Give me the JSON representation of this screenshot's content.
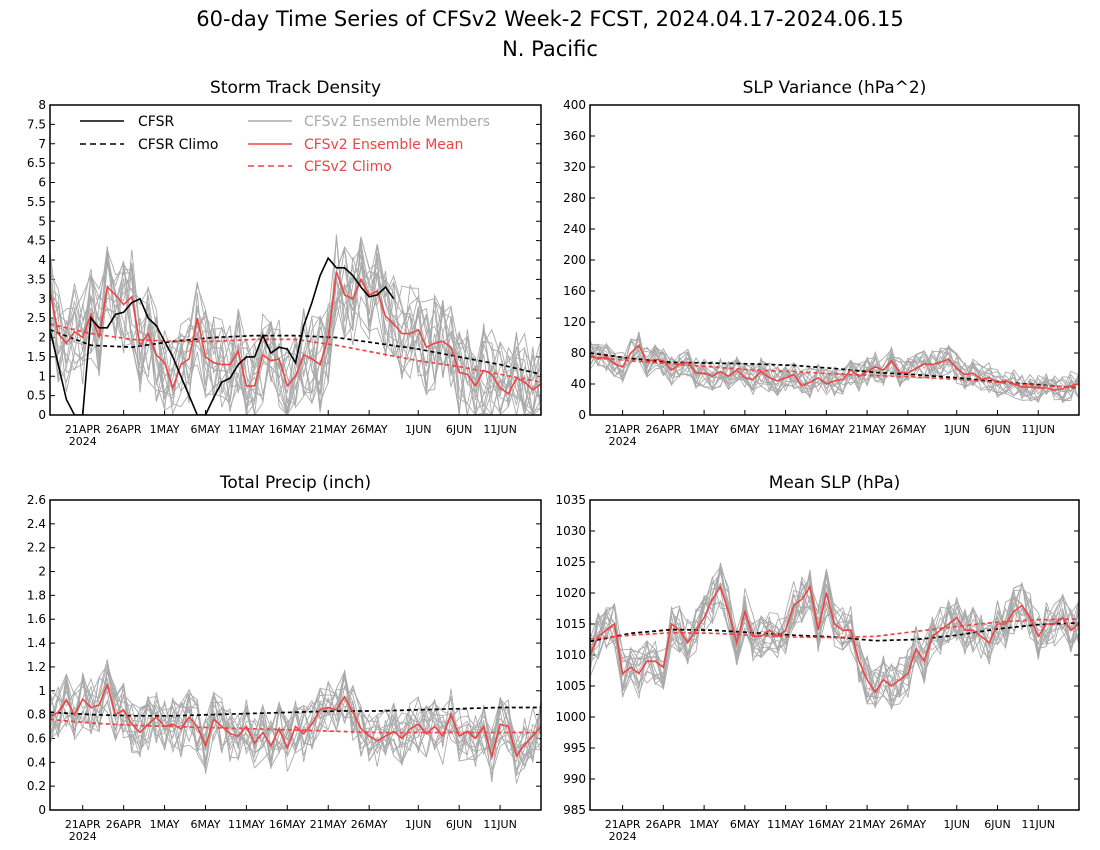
{
  "figure": {
    "title_line1": "60-day Time Series of CFSv2 Week-2 FCST, 2024.04.17-2024.06.15",
    "title_line2": "N. Pacific"
  },
  "colors": {
    "cfsr": "#000000",
    "cfsv2_mean": "#ee4444",
    "cfsv2_members": "#aaaaaa",
    "frame": "#000000"
  },
  "legend": {
    "cfsr": "CFSR",
    "cfsr_climo": "CFSR Climo",
    "members": "CFSv2 Ensemble Members",
    "mean": "CFSv2 Ensemble Mean",
    "cfsv2_climo": "CFSv2 Climo"
  },
  "x_axis": {
    "ticks": [
      {
        "day": 4,
        "label": "21APR",
        "sub": "2024"
      },
      {
        "day": 9,
        "label": "26APR"
      },
      {
        "day": 14,
        "label": "1MAY"
      },
      {
        "day": 19,
        "label": "6MAY"
      },
      {
        "day": 24,
        "label": "11MAY"
      },
      {
        "day": 29,
        "label": "16MAY"
      },
      {
        "day": 34,
        "label": "21MAY"
      },
      {
        "day": 39,
        "label": "26MAY"
      },
      {
        "day": 45,
        "label": "1JUN"
      },
      {
        "day": 50,
        "label": "6JUN"
      },
      {
        "day": 55,
        "label": "11JUN"
      }
    ]
  },
  "chart_data": [
    {
      "id": "storm",
      "type": "line",
      "title": "Storm Track Density",
      "ylim": [
        0,
        8
      ],
      "yticks": [
        "0",
        "0.5",
        "1",
        "1.5",
        "2",
        "2.5",
        "3",
        "3.5",
        "4",
        "4.5",
        "5",
        "5.5",
        "6",
        "6.5",
        "7",
        "7.5",
        "8"
      ],
      "member_count": 16,
      "member_spread": 0.9,
      "series": [
        {
          "name": "CFSR",
          "style": "solid",
          "color": "#000000",
          "x": [
            0,
            1,
            2,
            3,
            4,
            5,
            6,
            7,
            8,
            9,
            10,
            11,
            12,
            13,
            14,
            15,
            16,
            17,
            18,
            19,
            20,
            21,
            22,
            23,
            24,
            25,
            26,
            27,
            28,
            29,
            30,
            31,
            32,
            33,
            34,
            35,
            36,
            37,
            38,
            39,
            40,
            41,
            42
          ],
          "y": [
            2.2,
            1.3,
            0.4,
            0,
            0,
            2.5,
            2.25,
            2.25,
            2.6,
            2.65,
            2.9,
            3.0,
            2.5,
            2.3,
            1.9,
            1.5,
            1.0,
            0.5,
            0,
            0,
            0.45,
            0.85,
            0.95,
            1.3,
            1.5,
            1.5,
            2.05,
            1.6,
            1.75,
            1.7,
            1.35,
            2.3,
            2.9,
            3.6,
            4.05,
            3.8,
            3.8,
            3.6,
            3.3,
            3.05,
            3.1,
            3.3,
            3.0
          ]
        },
        {
          "name": "CFSR Climo",
          "style": "dashed",
          "color": "#000000",
          "x": [
            0,
            5,
            10,
            15,
            20,
            25,
            30,
            35,
            40,
            45,
            50,
            55,
            60
          ],
          "y": [
            2.2,
            1.8,
            1.75,
            1.9,
            2.0,
            2.05,
            2.05,
            2.0,
            1.85,
            1.7,
            1.5,
            1.3,
            1.05
          ]
        },
        {
          "name": "CFSv2 Ensemble Mean",
          "style": "solid",
          "color": "#ee4444",
          "x": [
            0,
            1,
            2,
            3,
            4,
            5,
            6,
            7,
            8,
            9,
            10,
            11,
            12,
            13,
            14,
            15,
            16,
            17,
            18,
            19,
            20,
            21,
            22,
            23,
            24,
            25,
            26,
            27,
            28,
            29,
            30,
            31,
            32,
            33,
            34,
            35,
            36,
            37,
            38,
            39,
            40,
            41,
            42,
            43,
            44,
            45,
            46,
            47,
            48,
            49,
            50,
            51,
            52,
            53,
            54,
            55,
            56,
            57,
            58,
            59,
            60
          ],
          "y": [
            3.2,
            2.1,
            1.85,
            2.15,
            2.0,
            2.6,
            2.0,
            3.3,
            3.1,
            2.85,
            3.05,
            1.8,
            2.1,
            1.55,
            1.35,
            0.7,
            1.3,
            1.45,
            2.5,
            1.5,
            1.35,
            1.3,
            1.3,
            1.65,
            0.75,
            0.75,
            1.55,
            1.4,
            1.45,
            0.75,
            1.0,
            1.55,
            1.45,
            1.3,
            2.0,
            3.7,
            3.1,
            3.0,
            3.5,
            3.1,
            3.2,
            2.55,
            2.35,
            2.1,
            2.1,
            2.2,
            1.75,
            1.85,
            1.9,
            1.75,
            1.1,
            1.05,
            0.75,
            1.15,
            1.05,
            0.7,
            0.55,
            0.95,
            0.85,
            0.65,
            0.8
          ]
        },
        {
          "name": "CFSv2 Climo",
          "style": "dashed",
          "color": "#ee4444",
          "x": [
            0,
            5,
            10,
            15,
            20,
            25,
            30,
            35,
            40,
            45,
            50,
            55,
            60
          ],
          "y": [
            2.35,
            2.1,
            1.95,
            1.9,
            1.9,
            1.95,
            1.95,
            1.8,
            1.6,
            1.4,
            1.25,
            1.05,
            0.85
          ]
        }
      ]
    },
    {
      "id": "slpvar",
      "type": "line",
      "title": "SLP Variance (hPa^2)",
      "ylim": [
        0,
        400
      ],
      "yticks": [
        "0",
        "40",
        "80",
        "120",
        "160",
        "200",
        "240",
        "280",
        "320",
        "360",
        "400"
      ],
      "member_count": 16,
      "member_spread": 14,
      "series": [
        {
          "name": "CFSR Climo",
          "style": "dashed",
          "color": "#000000",
          "x": [
            0,
            5,
            10,
            15,
            20,
            25,
            30,
            35,
            40,
            45,
            50,
            55,
            60
          ],
          "y": [
            80,
            73,
            68,
            67,
            66,
            64,
            60,
            55,
            52,
            48,
            43,
            39,
            35
          ]
        },
        {
          "name": "CFSv2 Ensemble Mean",
          "style": "solid",
          "color": "#ee4444",
          "x": [
            0,
            1,
            2,
            3,
            4,
            5,
            6,
            7,
            8,
            9,
            10,
            11,
            12,
            13,
            14,
            15,
            16,
            17,
            18,
            19,
            20,
            21,
            22,
            23,
            24,
            25,
            26,
            27,
            28,
            29,
            30,
            31,
            32,
            33,
            34,
            35,
            36,
            37,
            38,
            39,
            40,
            41,
            42,
            43,
            44,
            45,
            46,
            47,
            48,
            49,
            50,
            51,
            52,
            53,
            54,
            55,
            56,
            57,
            58,
            59,
            60
          ],
          "y": [
            78,
            72,
            75,
            66,
            62,
            80,
            90,
            68,
            72,
            70,
            58,
            66,
            68,
            54,
            54,
            50,
            56,
            50,
            58,
            48,
            46,
            56,
            48,
            44,
            48,
            52,
            38,
            42,
            48,
            40,
            44,
            46,
            58,
            50,
            56,
            62,
            58,
            70,
            55,
            54,
            60,
            66,
            65,
            68,
            72,
            60,
            52,
            54,
            46,
            48,
            42,
            44,
            40,
            36,
            36,
            35,
            35,
            32,
            34,
            38,
            40
          ]
        },
        {
          "name": "CFSv2 Climo",
          "style": "dashed",
          "color": "#ee4444",
          "x": [
            0,
            5,
            10,
            15,
            20,
            25,
            30,
            35,
            40,
            45,
            50,
            55,
            60
          ],
          "y": [
            75,
            70,
            66,
            62,
            58,
            56,
            53,
            51,
            49,
            46,
            42,
            38,
            36
          ]
        }
      ]
    },
    {
      "id": "precip",
      "type": "line",
      "title": "Total Precip (inch)",
      "ylim": [
        0,
        2.6
      ],
      "yticks": [
        "0",
        "0.2",
        "0.4",
        "0.6",
        "0.8",
        "1",
        "1.2",
        "1.4",
        "1.6",
        "1.8",
        "2",
        "2.2",
        "2.4",
        "2.6"
      ],
      "member_count": 16,
      "member_spread": 0.17,
      "series": [
        {
          "name": "CFSR Climo",
          "style": "dashed",
          "color": "#000000",
          "x": [
            0,
            5,
            10,
            15,
            20,
            25,
            30,
            35,
            40,
            45,
            50,
            55,
            60
          ],
          "y": [
            0.82,
            0.8,
            0.79,
            0.79,
            0.8,
            0.81,
            0.82,
            0.83,
            0.83,
            0.84,
            0.85,
            0.86,
            0.86
          ]
        },
        {
          "name": "CFSv2 Ensemble Mean",
          "style": "solid",
          "color": "#ee4444",
          "x": [
            0,
            1,
            2,
            3,
            4,
            5,
            6,
            7,
            8,
            9,
            10,
            11,
            12,
            13,
            14,
            15,
            16,
            17,
            18,
            19,
            20,
            21,
            22,
            23,
            24,
            25,
            26,
            27,
            28,
            29,
            30,
            31,
            32,
            33,
            34,
            35,
            36,
            37,
            38,
            39,
            40,
            41,
            42,
            43,
            44,
            45,
            46,
            47,
            48,
            49,
            50,
            51,
            52,
            53,
            54,
            55,
            56,
            57,
            58,
            59,
            60
          ],
          "y": [
            0.78,
            0.82,
            0.92,
            0.8,
            0.93,
            0.86,
            0.88,
            1.05,
            0.8,
            0.84,
            0.72,
            0.65,
            0.72,
            0.78,
            0.7,
            0.72,
            0.68,
            0.78,
            0.7,
            0.54,
            0.76,
            0.7,
            0.64,
            0.62,
            0.7,
            0.56,
            0.65,
            0.54,
            0.68,
            0.52,
            0.7,
            0.64,
            0.72,
            0.84,
            0.86,
            0.84,
            0.95,
            0.82,
            0.68,
            0.62,
            0.58,
            0.62,
            0.66,
            0.6,
            0.68,
            0.72,
            0.64,
            0.7,
            0.62,
            0.8,
            0.62,
            0.66,
            0.6,
            0.7,
            0.45,
            0.72,
            0.7,
            0.45,
            0.55,
            0.62,
            0.7
          ]
        },
        {
          "name": "CFSv2 Climo",
          "style": "dashed",
          "color": "#ee4444",
          "x": [
            0,
            5,
            10,
            15,
            20,
            25,
            30,
            35,
            40,
            45,
            50,
            55,
            60
          ],
          "y": [
            0.76,
            0.73,
            0.71,
            0.7,
            0.69,
            0.68,
            0.67,
            0.66,
            0.65,
            0.65,
            0.65,
            0.65,
            0.65
          ]
        }
      ]
    },
    {
      "id": "meanslp",
      "type": "line",
      "title": "Mean SLP (hPa)",
      "ylim": [
        985,
        1035
      ],
      "yticks": [
        "985",
        "990",
        "995",
        "1000",
        "1005",
        "1010",
        "1015",
        "1020",
        "1025",
        "1030",
        "1035"
      ],
      "member_count": 16,
      "member_spread": 2.8,
      "series": [
        {
          "name": "CFSR Climo",
          "style": "dashed",
          "color": "#000000",
          "x": [
            0,
            5,
            10,
            15,
            20,
            25,
            30,
            35,
            40,
            45,
            50,
            55,
            60
          ],
          "y": [
            1012.2,
            1013.5,
            1014.1,
            1014.0,
            1013.6,
            1013.2,
            1012.9,
            1012.3,
            1012.5,
            1013.2,
            1014.2,
            1014.9,
            1015.2
          ]
        },
        {
          "name": "CFSv2 Ensemble Mean",
          "style": "solid",
          "color": "#ee4444",
          "x": [
            0,
            1,
            2,
            3,
            4,
            5,
            6,
            7,
            8,
            9,
            10,
            11,
            12,
            13,
            14,
            15,
            16,
            17,
            18,
            19,
            20,
            21,
            22,
            23,
            24,
            25,
            26,
            27,
            28,
            29,
            30,
            31,
            32,
            33,
            34,
            35,
            36,
            37,
            38,
            39,
            40,
            41,
            42,
            43,
            44,
            45,
            46,
            47,
            48,
            49,
            50,
            51,
            52,
            53,
            54,
            55,
            56,
            57,
            58,
            59,
            60
          ],
          "y": [
            1010,
            1013,
            1014,
            1015,
            1007,
            1008,
            1007,
            1009,
            1009,
            1008,
            1015,
            1014,
            1012,
            1014,
            1016,
            1019,
            1021,
            1017,
            1012,
            1017,
            1013,
            1013,
            1014,
            1013,
            1014,
            1018,
            1019,
            1021,
            1014,
            1020,
            1015,
            1014,
            1014,
            1009,
            1006,
            1004,
            1006,
            1005,
            1006,
            1007,
            1011,
            1009,
            1013,
            1014,
            1015,
            1016,
            1014,
            1014,
            1013,
            1012,
            1015,
            1015,
            1017,
            1018,
            1016,
            1013,
            1015,
            1015,
            1016,
            1014,
            1015
          ]
        },
        {
          "name": "CFSv2 Climo",
          "style": "dashed",
          "color": "#ee4444",
          "x": [
            0,
            5,
            10,
            15,
            20,
            25,
            30,
            35,
            40,
            45,
            50,
            55,
            60
          ],
          "y": [
            1012.6,
            1013.2,
            1013.6,
            1013.5,
            1013.2,
            1012.9,
            1012.8,
            1013.0,
            1013.8,
            1014.6,
            1015.3,
            1015.7,
            1015.8
          ]
        }
      ]
    }
  ]
}
